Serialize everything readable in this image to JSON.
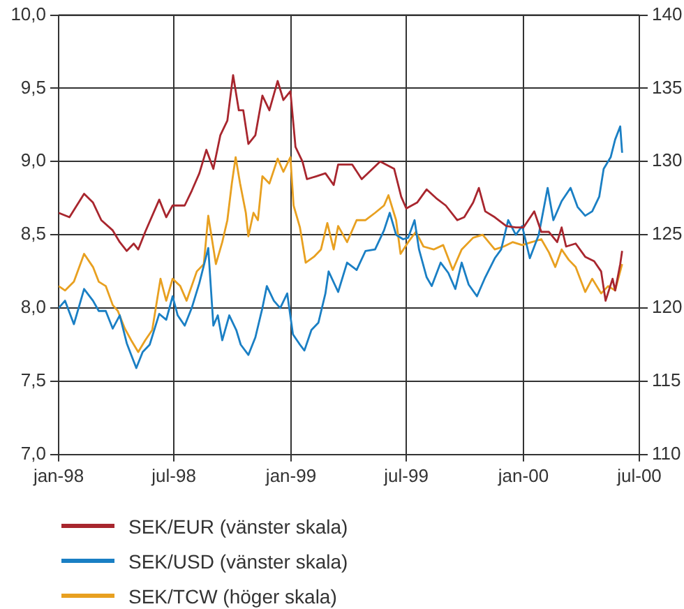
{
  "chart_data": {
    "type": "line",
    "xlim": [
      "1998-01-01",
      "2000-07-01"
    ],
    "xticks": [
      {
        "value": "1998-01-01",
        "label": "jan-98"
      },
      {
        "value": "1998-07-01",
        "label": "jul-98"
      },
      {
        "value": "1999-01-01",
        "label": "jan-99"
      },
      {
        "value": "1999-07-01",
        "label": "jul-99"
      },
      {
        "value": "2000-01-01",
        "label": "jan-00"
      },
      {
        "value": "2000-07-01",
        "label": "jul-00"
      }
    ],
    "ylim": [
      7,
      10
    ],
    "yticks": [
      {
        "value": 7,
        "label": "7,0"
      },
      {
        "value": 7.5,
        "label": "7,5"
      },
      {
        "value": 8,
        "label": "8,0"
      },
      {
        "value": 8.5,
        "label": "8,5"
      },
      {
        "value": 9,
        "label": "9,0"
      },
      {
        "value": 9.5,
        "label": "9,5"
      },
      {
        "value": 10,
        "label": "10,0"
      }
    ],
    "y2lim": [
      110,
      140
    ],
    "y2ticks": [
      110,
      115,
      120,
      125,
      130,
      135,
      140
    ],
    "grid": true,
    "legend": "bottom",
    "marker": "none",
    "line_style": "solid",
    "series": [
      {
        "name": "SEK/EUR (vänster skala)",
        "color": "#a8262e",
        "x": [
          "1998-01-01",
          "1998-01-18",
          "1998-02-10",
          "1998-02-24",
          "1998-03-09",
          "1998-03-27",
          "1998-04-07",
          "1998-04-18",
          "1998-04-29",
          "1998-05-06",
          "1998-05-17",
          "1998-06-08",
          "1998-06-19",
          "1998-06-29",
          "1998-07-18",
          "1998-07-29",
          "1998-08-10",
          "1998-08-21",
          "1998-09-01",
          "1998-09-12",
          "1998-09-23",
          "1998-10-02",
          "1998-10-11",
          "1998-10-18",
          "1998-10-26",
          "1998-11-06",
          "1998-11-17",
          "1998-11-28",
          "1998-12-11",
          "1998-12-20",
          "1998-12-31",
          "1999-01-08",
          "1999-01-19",
          "1999-01-26",
          "1999-02-10",
          "1999-02-24",
          "1999-03-09",
          "1999-03-16",
          "1999-04-07",
          "1999-04-22",
          "1999-05-21",
          "1999-06-12",
          "1999-06-23",
          "1999-07-01",
          "1999-07-18",
          "1999-08-02",
          "1999-08-17",
          "1999-09-01",
          "1999-09-19",
          "1999-09-30",
          "1999-10-14",
          "1999-10-23",
          "1999-11-02",
          "1999-11-17",
          "1999-12-05",
          "1999-12-20",
          "2000-01-01",
          "2000-01-18",
          "2000-01-29",
          "2000-02-10",
          "2000-02-23",
          "2000-03-01",
          "2000-03-08",
          "2000-03-23",
          "2000-04-07",
          "2000-04-21",
          "2000-05-02",
          "2000-05-09",
          "2000-05-20",
          "2000-05-24",
          "2000-06-01",
          "2000-06-04"
        ],
        "values": [
          8.65,
          8.62,
          8.78,
          8.72,
          8.6,
          8.53,
          8.45,
          8.39,
          8.44,
          8.4,
          8.52,
          8.74,
          8.62,
          8.7,
          8.7,
          8.8,
          8.92,
          9.08,
          8.95,
          9.18,
          9.28,
          9.59,
          9.35,
          9.35,
          9.12,
          9.18,
          9.45,
          9.35,
          9.55,
          9.42,
          9.48,
          9.1,
          9.0,
          8.88,
          8.9,
          8.92,
          8.84,
          8.98,
          8.98,
          8.88,
          9.0,
          8.95,
          8.76,
          8.68,
          8.72,
          8.81,
          8.75,
          8.7,
          8.6,
          8.62,
          8.72,
          8.82,
          8.66,
          8.62,
          8.56,
          8.55,
          8.55,
          8.66,
          8.52,
          8.52,
          8.45,
          8.55,
          8.42,
          8.44,
          8.35,
          8.32,
          8.25,
          8.05,
          8.2,
          8.12,
          8.3,
          8.39
        ]
      },
      {
        "name": "SEK/USD (vänster skala)",
        "color": "#1a7fc4",
        "x": [
          "1998-01-01",
          "1998-01-11",
          "1998-01-25",
          "1998-02-10",
          "1998-02-24",
          "1998-03-05",
          "1998-03-16",
          "1998-03-27",
          "1998-04-07",
          "1998-04-18",
          "1998-04-25",
          "1998-05-03",
          "1998-05-13",
          "1998-05-24",
          "1998-06-08",
          "1998-06-19",
          "1998-06-29",
          "1998-07-07",
          "1998-07-18",
          "1998-07-29",
          "1998-08-10",
          "1998-08-24",
          "1998-09-01",
          "1998-09-08",
          "1998-09-15",
          "1998-09-26",
          "1998-10-07",
          "1998-10-14",
          "1998-10-26",
          "1998-11-06",
          "1998-11-17",
          "1998-11-24",
          "1998-12-05",
          "1998-12-15",
          "1998-12-26",
          "1999-01-04",
          "1999-01-15",
          "1999-01-22",
          "1999-02-02",
          "1999-02-13",
          "1999-02-24",
          "1999-03-01",
          "1999-03-16",
          "1999-03-30",
          "1999-04-14",
          "1999-04-28",
          "1999-05-13",
          "1999-05-27",
          "1999-06-05",
          "1999-06-15",
          "1999-06-26",
          "1999-07-04",
          "1999-07-14",
          "1999-07-21",
          "1999-08-02",
          "1999-08-10",
          "1999-08-24",
          "1999-09-05",
          "1999-09-16",
          "1999-09-26",
          "1999-10-07",
          "1999-10-20",
          "1999-11-02",
          "1999-11-17",
          "1999-11-27",
          "1999-12-08",
          "1999-12-20",
          "1999-12-30",
          "2000-01-11",
          "2000-01-25",
          "2000-02-08",
          "2000-02-17",
          "2000-03-01",
          "2000-03-15",
          "2000-03-26",
          "2000-04-07",
          "2000-04-18",
          "2000-04-29",
          "2000-05-06",
          "2000-05-17",
          "2000-05-24",
          "2000-06-01",
          "2000-06-04"
        ],
        "values": [
          8.0,
          8.05,
          7.89,
          8.13,
          8.05,
          7.98,
          7.98,
          7.86,
          7.95,
          7.76,
          7.68,
          7.59,
          7.7,
          7.75,
          7.96,
          7.92,
          8.08,
          7.95,
          7.88,
          8.0,
          8.17,
          8.41,
          7.88,
          7.95,
          7.78,
          7.95,
          7.85,
          7.75,
          7.68,
          7.8,
          8.0,
          8.15,
          8.05,
          8.0,
          8.1,
          7.82,
          7.75,
          7.71,
          7.85,
          7.9,
          8.1,
          8.25,
          8.11,
          8.31,
          8.26,
          8.39,
          8.4,
          8.53,
          8.65,
          8.5,
          8.47,
          8.48,
          8.6,
          8.4,
          8.21,
          8.15,
          8.31,
          8.24,
          8.13,
          8.31,
          8.16,
          8.08,
          8.21,
          8.34,
          8.4,
          8.6,
          8.5,
          8.56,
          8.34,
          8.5,
          8.82,
          8.6,
          8.73,
          8.82,
          8.69,
          8.63,
          8.66,
          8.76,
          8.95,
          9.03,
          9.15,
          9.24,
          9.06
        ]
      },
      {
        "name": "SEK/TCW (höger skala)",
        "color": "#e8a020",
        "axis": "y2",
        "x": [
          "1998-01-01",
          "1998-01-11",
          "1998-01-25",
          "1998-02-10",
          "1998-02-24",
          "1998-03-05",
          "1998-03-16",
          "1998-03-27",
          "1998-04-04",
          "1998-04-15",
          "1998-04-25",
          "1998-05-06",
          "1998-05-17",
          "1998-05-28",
          "1998-06-10",
          "1998-06-19",
          "1998-06-29",
          "1998-07-11",
          "1998-07-21",
          "1998-08-06",
          "1998-08-17",
          "1998-08-24",
          "1998-09-05",
          "1998-09-15",
          "1998-09-23",
          "1998-09-30",
          "1998-10-06",
          "1998-10-13",
          "1998-10-22",
          "1998-10-26",
          "1998-11-03",
          "1998-11-10",
          "1998-11-17",
          "1998-11-28",
          "1998-12-11",
          "1998-12-20",
          "1998-12-31",
          "1999-01-05",
          "1999-01-15",
          "1999-01-24",
          "1999-02-06",
          "1999-02-17",
          "1999-02-27",
          "1999-03-09",
          "1999-03-16",
          "1999-03-30",
          "1999-04-14",
          "1999-04-28",
          "1999-05-13",
          "1999-05-27",
          "1999-06-03",
          "1999-06-15",
          "1999-06-22",
          "1999-07-04",
          "1999-07-16",
          "1999-07-28",
          "1999-08-13",
          "1999-08-28",
          "1999-09-12",
          "1999-09-26",
          "1999-10-14",
          "1999-10-29",
          "1999-11-17",
          "1999-12-01",
          "1999-12-15",
          "1999-12-30",
          "2000-01-14",
          "2000-01-29",
          "2000-02-10",
          "2000-02-20",
          "2000-03-01",
          "2000-03-12",
          "2000-03-23",
          "2000-04-07",
          "2000-04-18",
          "2000-05-02",
          "2000-05-13",
          "2000-05-24",
          "2000-06-04"
        ],
        "values": [
          121.5,
          121.2,
          121.8,
          123.7,
          122.8,
          121.8,
          121.5,
          120.2,
          119.8,
          118.6,
          117.8,
          117.0,
          117.8,
          118.5,
          122.0,
          120.5,
          122.0,
          121.5,
          120.5,
          122.5,
          123.0,
          126.3,
          123.0,
          124.5,
          126.0,
          128.5,
          130.3,
          128.5,
          126.5,
          124.9,
          126.5,
          126.0,
          129.0,
          128.5,
          130.2,
          129.3,
          130.3,
          127.0,
          125.5,
          123.1,
          123.5,
          124.0,
          125.8,
          124.0,
          125.6,
          124.5,
          126.0,
          126.0,
          126.5,
          127.0,
          127.7,
          126.0,
          123.7,
          124.5,
          125.2,
          124.2,
          124.0,
          124.3,
          122.6,
          124.0,
          124.8,
          125.0,
          124.0,
          124.2,
          124.5,
          124.3,
          124.5,
          124.7,
          123.8,
          122.8,
          124.0,
          123.3,
          122.8,
          121.1,
          122.0,
          121.0,
          121.5,
          121.2,
          123.0
        ]
      }
    ]
  }
}
